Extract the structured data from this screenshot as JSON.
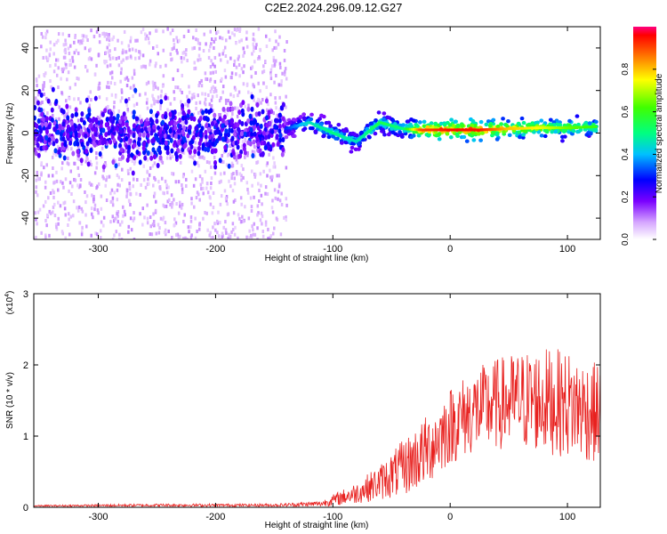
{
  "title": "C2E2.2024.296.09.12.G27",
  "chart_data": [
    {
      "type": "heatmap",
      "xlabel": "Height of straight line (km)",
      "ylabel": "Frequency (Hz)",
      "xlim": [
        -355,
        128
      ],
      "ylim": [
        -50,
        50
      ],
      "x_ticks": [
        -300,
        -200,
        -100,
        0,
        100
      ],
      "y_ticks": [
        -40,
        -20,
        0,
        20,
        40
      ],
      "colorbar": {
        "label": "Normalized spectral amplitude",
        "range": [
          0,
          1
        ],
        "ticks": [
          0.0,
          0.2,
          0.4,
          0.6,
          0.8
        ]
      },
      "ridge": {
        "x": [
          -140,
          -120,
          -100,
          -80,
          -60,
          -40,
          -25,
          0,
          25,
          50,
          75,
          100,
          125
        ],
        "freq_hz": [
          2,
          5,
          0,
          -4,
          5,
          2,
          1.5,
          1.5,
          1.5,
          2,
          2.5,
          2.5,
          3
        ],
        "amplitude": [
          0.3,
          0.45,
          0.5,
          0.45,
          0.55,
          0.5,
          0.9,
          0.95,
          0.95,
          0.8,
          0.75,
          0.65,
          0.6
        ]
      },
      "noise_region": {
        "x_range": [
          -355,
          -140
        ],
        "amplitude_max": 0.2
      }
    },
    {
      "type": "line",
      "xlabel": "Height of straight line (km)",
      "ylabel": "SNR (10 * v/v)",
      "y_multiplier_label": "(x10",
      "y_multiplier_exp": "4",
      "xlim": [
        -355,
        128
      ],
      "ylim": [
        0,
        3
      ],
      "x_ticks": [
        -300,
        -200,
        -100,
        0,
        100
      ],
      "y_ticks": [
        0,
        1,
        2,
        3
      ],
      "series": [
        {
          "color": "#e8211f",
          "envelope_x": [
            -355,
            -250,
            -150,
            -110,
            -100,
            -80,
            -60,
            -40,
            -20,
            0,
            20,
            40,
            60,
            80,
            100,
            128
          ],
          "envelope_mean": [
            0.02,
            0.03,
            0.03,
            0.05,
            0.1,
            0.2,
            0.35,
            0.55,
            0.8,
            1.15,
            1.35,
            1.45,
            1.5,
            1.5,
            1.45,
            1.3
          ],
          "envelope_spread": [
            0.01,
            0.02,
            0.02,
            0.04,
            0.08,
            0.15,
            0.25,
            0.4,
            0.5,
            0.55,
            0.6,
            0.65,
            0.7,
            0.75,
            0.75,
            0.7
          ]
        }
      ]
    }
  ]
}
